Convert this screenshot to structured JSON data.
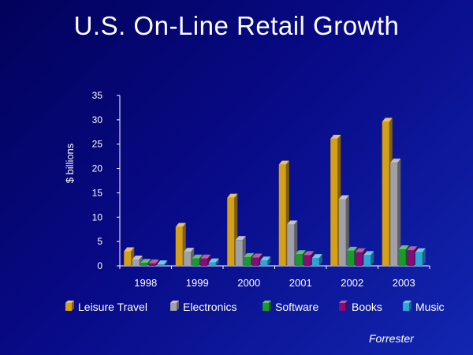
{
  "title": "U.S. On-Line Retail Growth",
  "source": "Forrester",
  "chart_data": {
    "type": "bar",
    "title": "U.S. On-Line Retail Growth",
    "xlabel": "",
    "ylabel": "$ billions",
    "ylim": [
      0,
      35
    ],
    "yticks": [
      0,
      5,
      10,
      15,
      20,
      25,
      30,
      35
    ],
    "categories": [
      "1998",
      "1999",
      "2000",
      "2001",
      "2002",
      "2003"
    ],
    "legend_position": "bottom",
    "grid": false,
    "series": [
      {
        "name": "Leisure Travel",
        "color": "#d4a017",
        "values": [
          3,
          8,
          14,
          20.8,
          26.1,
          29.6
        ]
      },
      {
        "name": "Electronics",
        "color": "#a0a0a8",
        "values": [
          1.3,
          2.9,
          5.3,
          8.5,
          13.7,
          21.2
        ]
      },
      {
        "name": "Software",
        "color": "#1a9a2e",
        "values": [
          0.6,
          1.5,
          1.8,
          2.4,
          3.1,
          3.4
        ]
      },
      {
        "name": "Books",
        "color": "#8a0a78",
        "values": [
          0.5,
          1.5,
          1.7,
          2.2,
          2.8,
          3.2
        ]
      },
      {
        "name": "Music",
        "color": "#29a8d8",
        "values": [
          0.3,
          0.7,
          1.1,
          1.6,
          2.2,
          2.8
        ]
      }
    ]
  }
}
